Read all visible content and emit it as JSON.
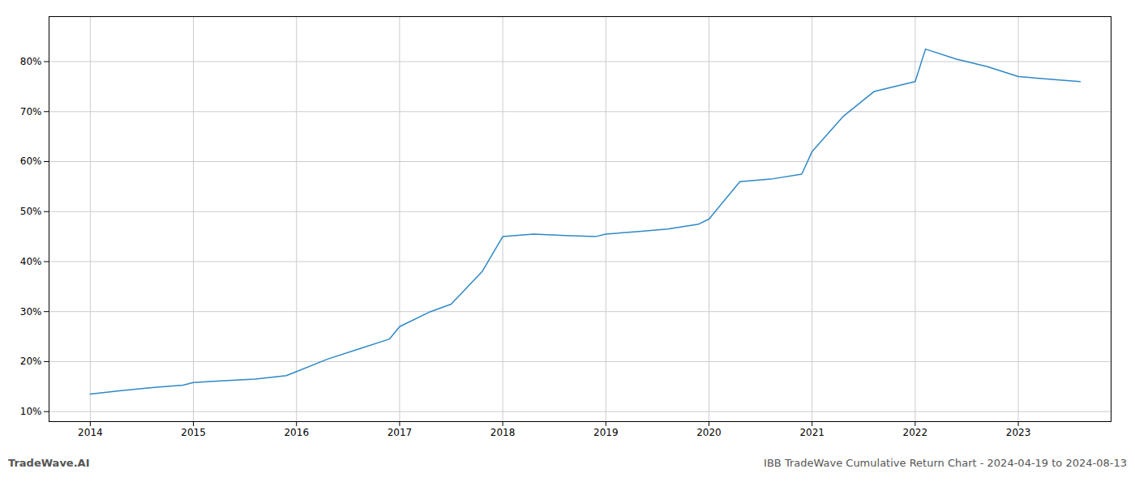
{
  "chart_data": {
    "type": "line",
    "title": "IBB TradeWave Cumulative Return Chart - 2024-04-19 to 2024-08-13",
    "annotations": [
      "TradeWave.AI"
    ],
    "color": "#2f88c6",
    "grid": true,
    "x": [
      2014.0,
      2014.3,
      2014.6,
      2014.9,
      2015.0,
      2015.3,
      2015.6,
      2015.9,
      2016.0,
      2016.3,
      2016.6,
      2016.9,
      2017.0,
      2017.3,
      2017.5,
      2017.8,
      2018.0,
      2018.3,
      2018.6,
      2018.9,
      2019.0,
      2019.3,
      2019.6,
      2019.9,
      2020.0,
      2020.3,
      2020.6,
      2020.9,
      2021.0,
      2021.3,
      2021.6,
      2021.9,
      2022.0,
      2022.1,
      2022.4,
      2022.7,
      2023.0,
      2023.3,
      2023.6
    ],
    "values": [
      13.5,
      14.2,
      14.8,
      15.3,
      15.8,
      16.2,
      16.5,
      17.2,
      18.0,
      20.5,
      22.5,
      24.5,
      27.0,
      30.0,
      31.5,
      38.0,
      45.0,
      45.5,
      45.2,
      45.0,
      45.5,
      46.0,
      46.5,
      47.5,
      48.5,
      56.0,
      56.5,
      57.5,
      62.0,
      69.0,
      74.0,
      75.5,
      76.0,
      82.5,
      80.5,
      79.0,
      77.0,
      76.5,
      76.0
    ],
    "xlim": [
      2013.6,
      2023.9
    ],
    "xticks": [
      {
        "value": 2014,
        "label": "2014"
      },
      {
        "value": 2015,
        "label": "2015"
      },
      {
        "value": 2016,
        "label": "2016"
      },
      {
        "value": 2017,
        "label": "2017"
      },
      {
        "value": 2018,
        "label": "2018"
      },
      {
        "value": 2019,
        "label": "2019"
      },
      {
        "value": 2020,
        "label": "2020"
      },
      {
        "value": 2021,
        "label": "2021"
      },
      {
        "value": 2022,
        "label": "2022"
      },
      {
        "value": 2023,
        "label": "2023"
      }
    ],
    "ylim": [
      8,
      89
    ],
    "yticks": [
      {
        "value": 10,
        "label": "10%"
      },
      {
        "value": 20,
        "label": "20%"
      },
      {
        "value": 30,
        "label": "30%"
      },
      {
        "value": 40,
        "label": "40%"
      },
      {
        "value": 50,
        "label": "50%"
      },
      {
        "value": 60,
        "label": "60%"
      },
      {
        "value": 70,
        "label": "70%"
      },
      {
        "value": 80,
        "label": "80%"
      }
    ]
  }
}
